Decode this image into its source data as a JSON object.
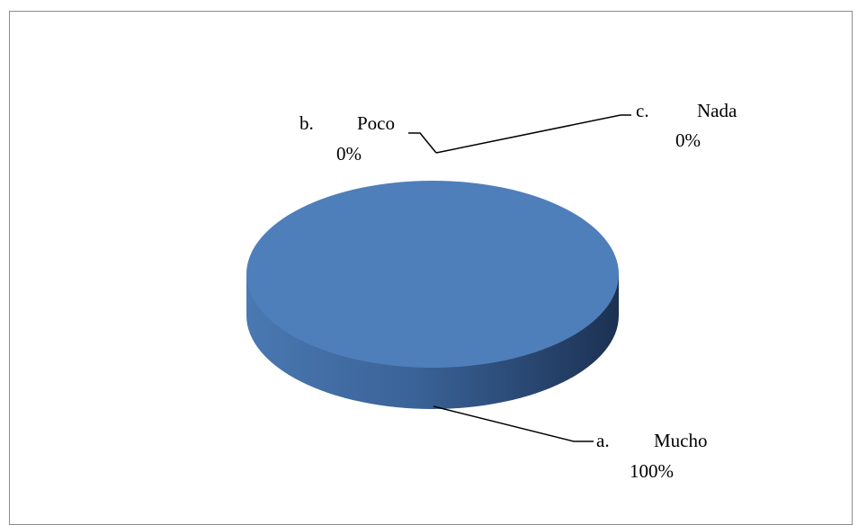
{
  "chart_data": {
    "type": "pie",
    "style": "3d",
    "slices": [
      {
        "letter": "a.",
        "label": "Mucho",
        "value": 100,
        "percent_label": "100%"
      },
      {
        "letter": "b.",
        "label": "Poco",
        "value": 0,
        "percent_label": "0%"
      },
      {
        "letter": "c.",
        "label": "Nada",
        "value": 0,
        "percent_label": "0%"
      }
    ],
    "legend": "none",
    "colors": {
      "slice_top": "#4f7fba",
      "slice_side_light": "#3f6aa0",
      "slice_side_dark": "#1e3457",
      "frame": "#8c8c8c",
      "leader": "#000000"
    }
  }
}
